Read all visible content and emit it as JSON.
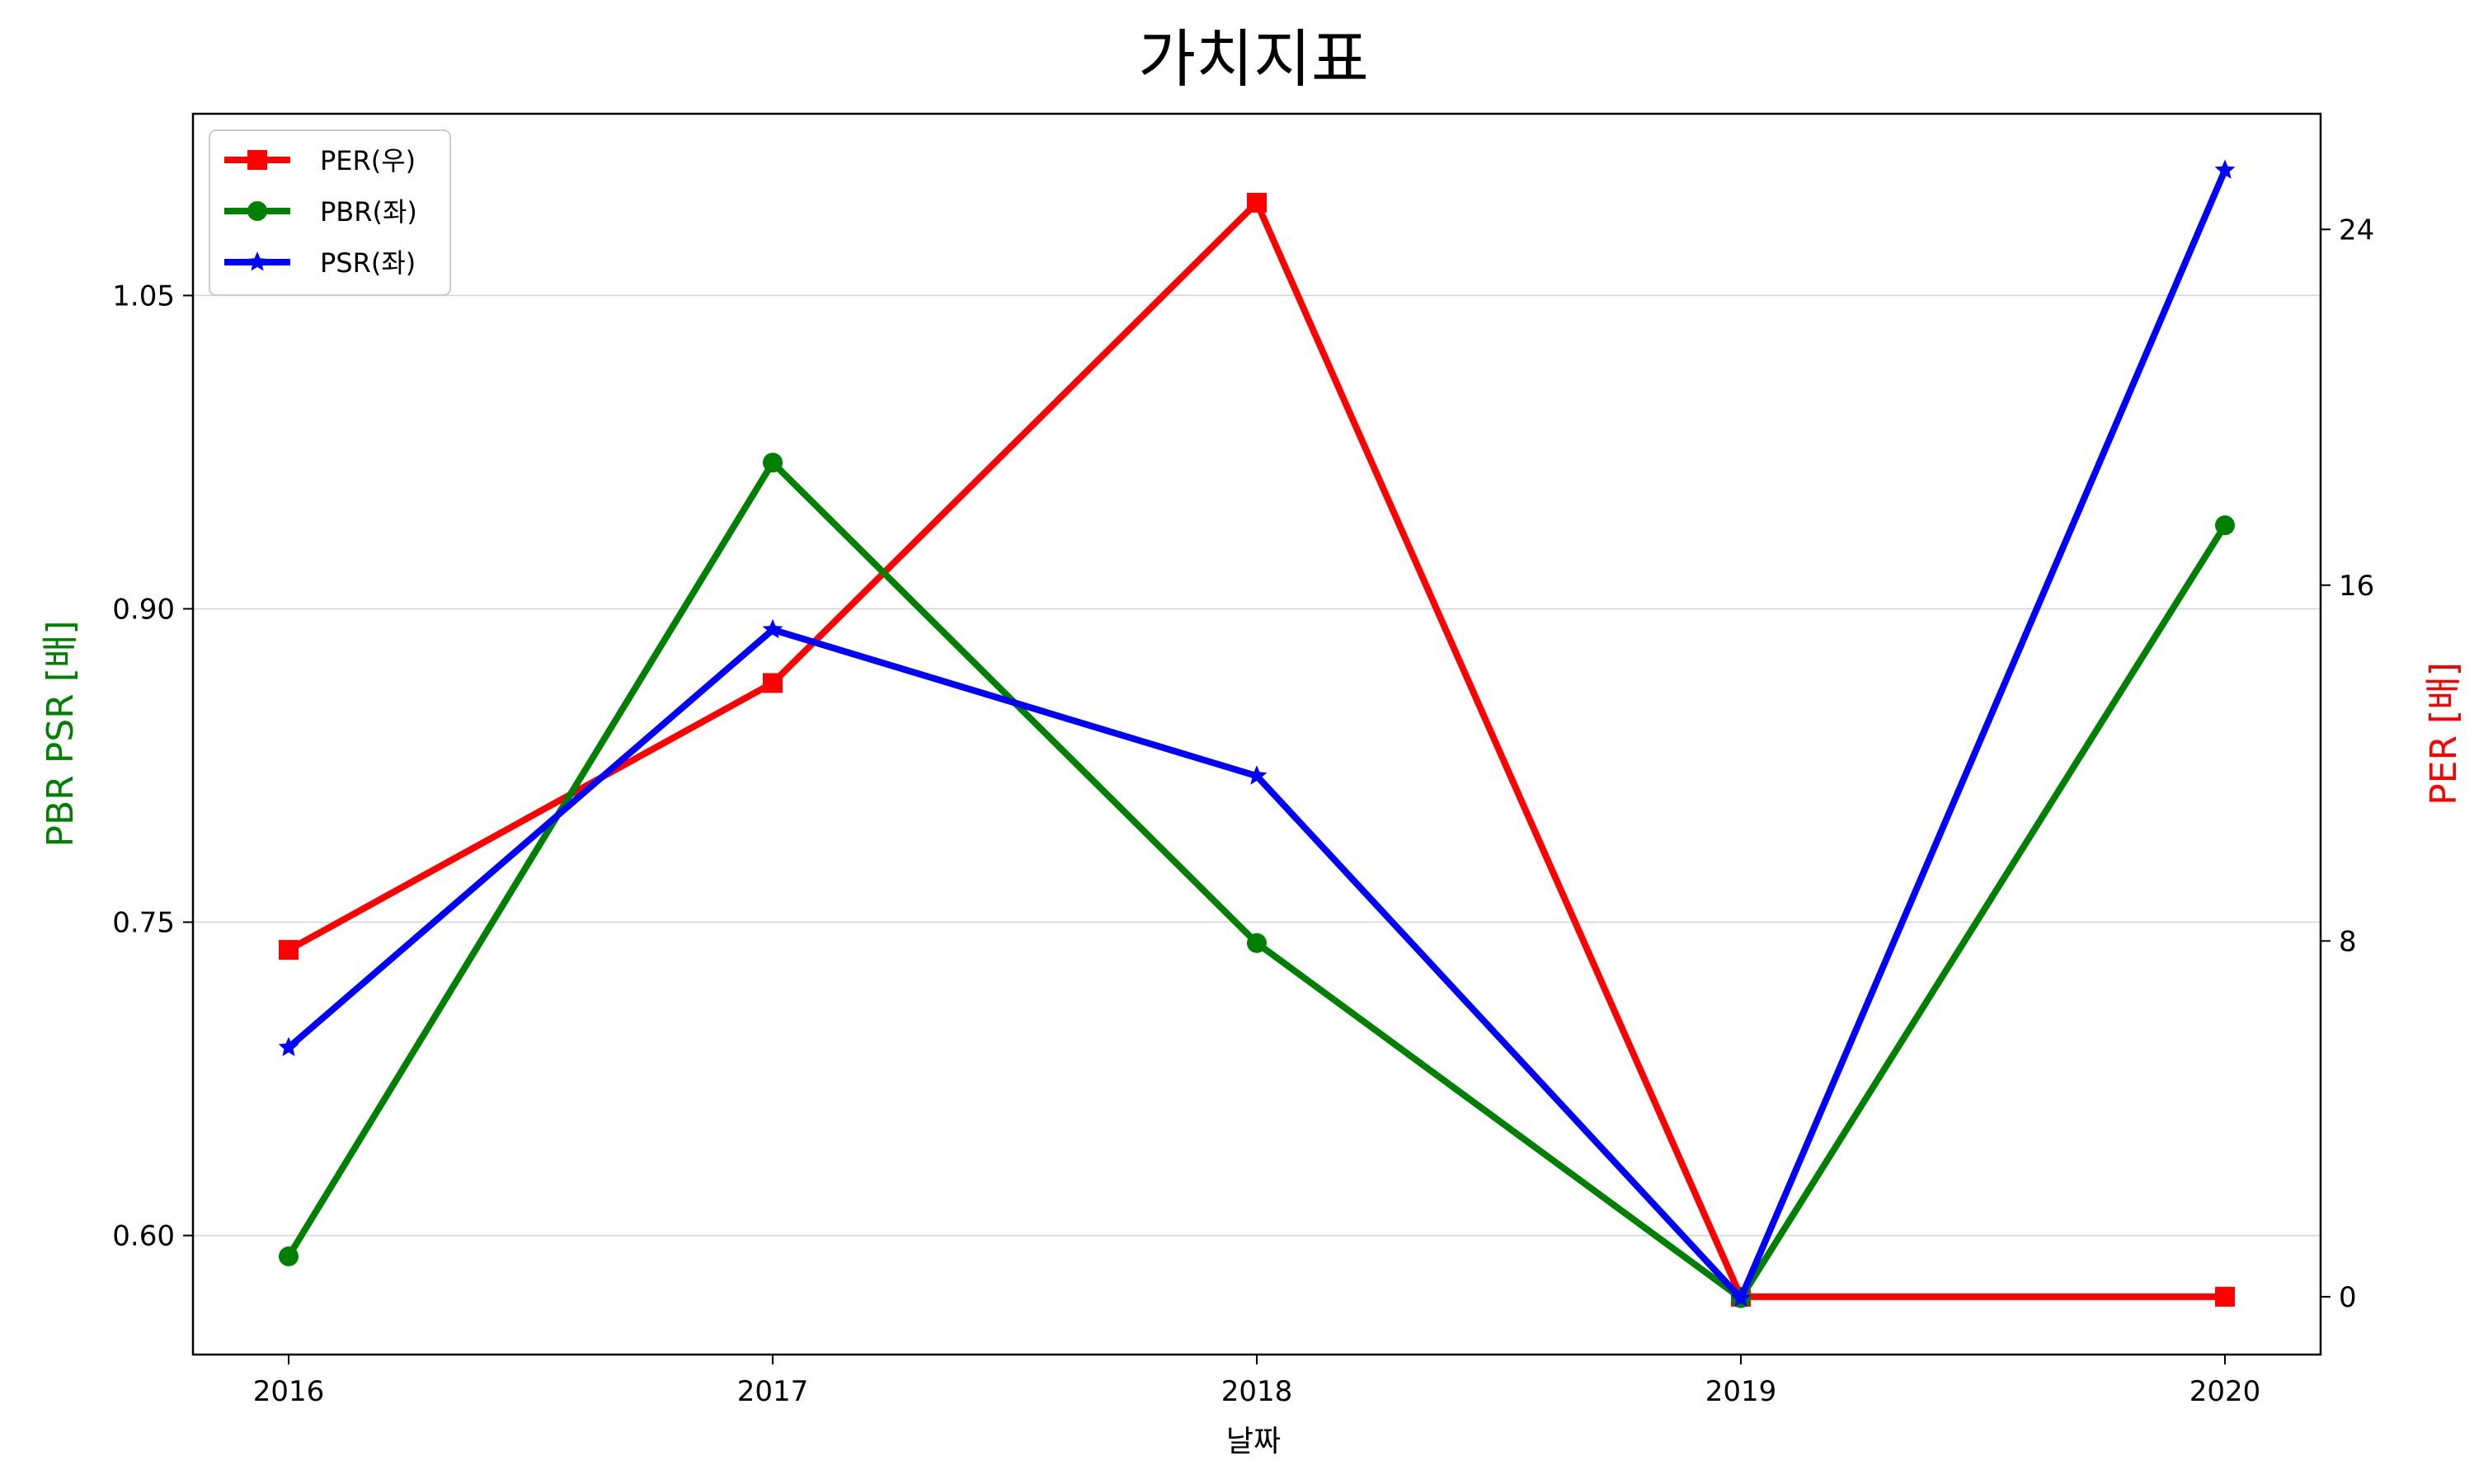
{
  "chart_data": {
    "type": "line",
    "title": "가치지표",
    "xlabel": "날짜",
    "ylabel_left": "PBR PSR [배]",
    "ylabel_right": "PER [배]",
    "ylabel_left_color": "#008000",
    "ylabel_right_color": "#ff0000",
    "x": [
      "2016",
      "2017",
      "2018",
      "2019",
      "2020"
    ],
    "left_axis": {
      "ylim": [
        0.543,
        1.137
      ],
      "ticks": [
        "0.60",
        "0.75",
        "0.90",
        "1.05"
      ],
      "tick_values": [
        0.6,
        0.75,
        0.9,
        1.05
      ],
      "grid": true
    },
    "right_axis": {
      "ylim": [
        -1.3,
        26.6
      ],
      "ticks": [
        "0",
        "8",
        "16",
        "24"
      ],
      "tick_values": [
        0,
        8,
        16,
        24
      ],
      "grid": false
    },
    "legend_position": "top-left",
    "series": [
      {
        "name": "PER(우)",
        "axis": "right",
        "color": "#ff0000",
        "marker": "square",
        "values": [
          7.8,
          13.8,
          24.6,
          0,
          0
        ]
      },
      {
        "name": "PBR(좌)",
        "axis": "left",
        "color": "#008000",
        "marker": "circle",
        "values": [
          0.59,
          0.97,
          0.74,
          0.57,
          0.94
        ]
      },
      {
        "name": "PSR(좌)",
        "axis": "left",
        "color": "#0000ff",
        "marker": "star",
        "values": [
          0.69,
          0.89,
          0.82,
          0.57,
          1.11
        ]
      }
    ]
  }
}
